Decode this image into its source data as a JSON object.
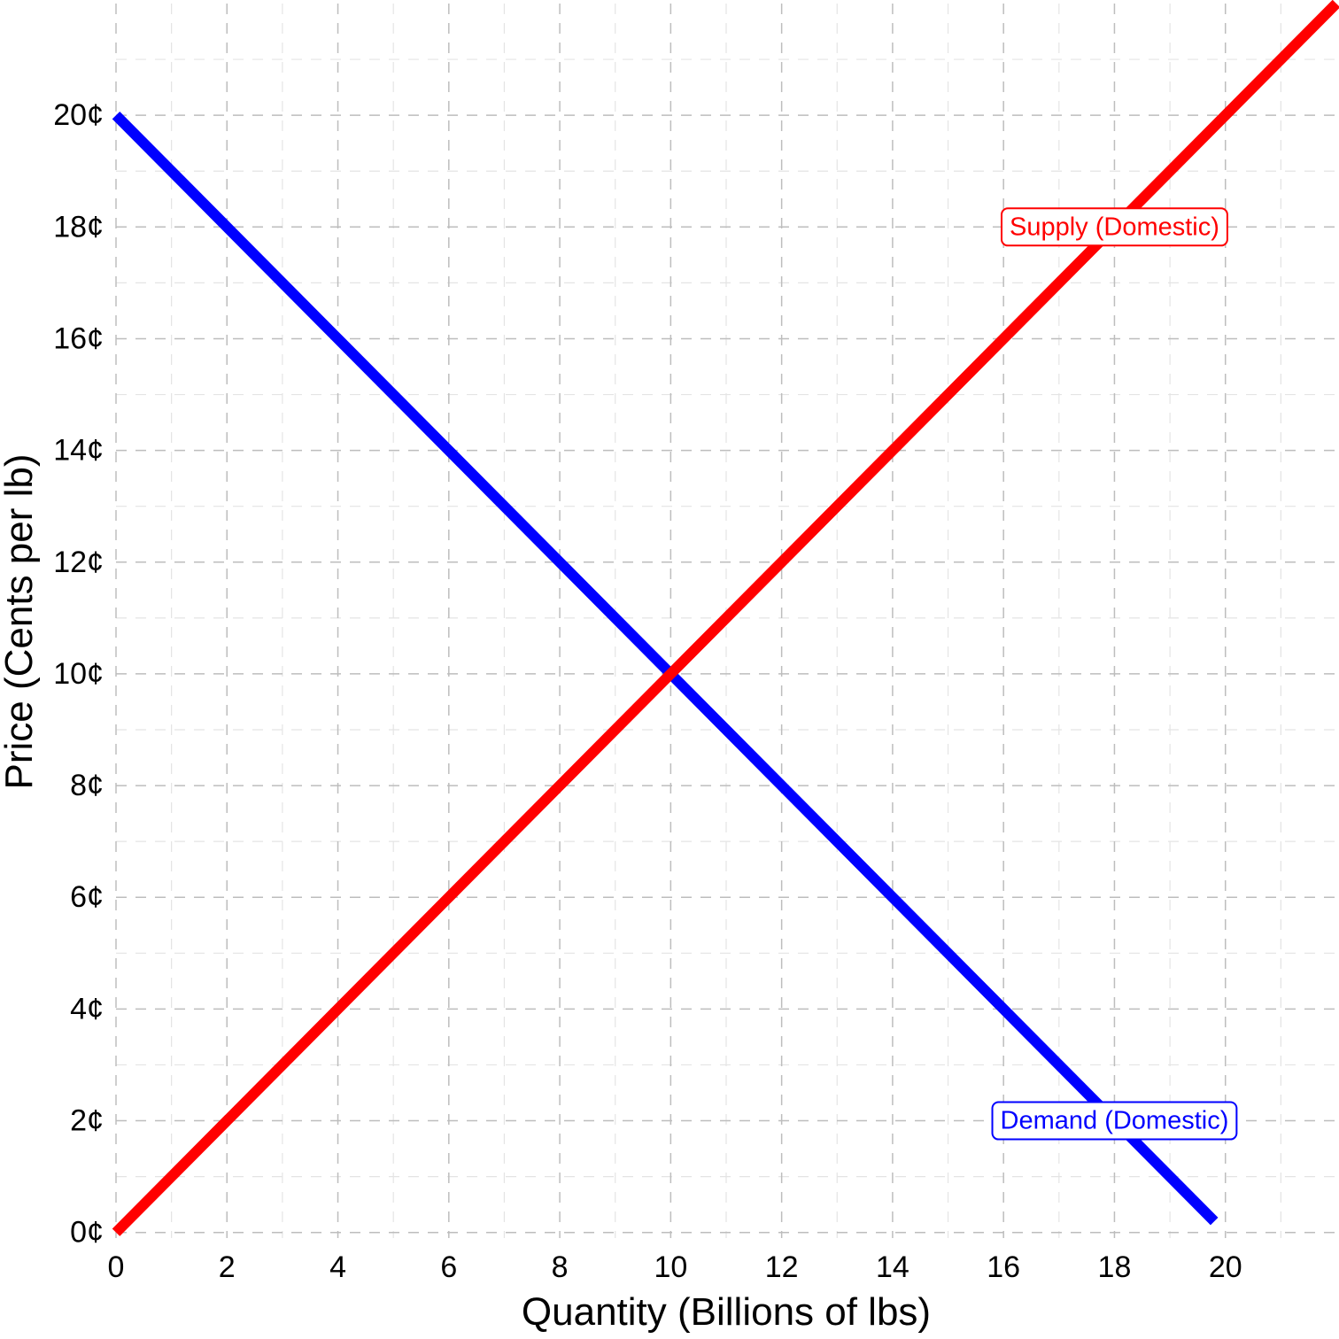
{
  "chart_data": {
    "type": "line",
    "xlabel": "Quantity (Billions of lbs)",
    "ylabel": "Price (Cents per lb)",
    "xlim": [
      0,
      22
    ],
    "ylim": [
      -0.1,
      22
    ],
    "x_ticks": [
      {
        "value": 0,
        "label": "0"
      },
      {
        "value": 2,
        "label": "2"
      },
      {
        "value": 4,
        "label": "4"
      },
      {
        "value": 6,
        "label": "6"
      },
      {
        "value": 8,
        "label": "8"
      },
      {
        "value": 10,
        "label": "10"
      },
      {
        "value": 12,
        "label": "12"
      },
      {
        "value": 14,
        "label": "14"
      },
      {
        "value": 16,
        "label": "16"
      },
      {
        "value": 18,
        "label": "18"
      },
      {
        "value": 20,
        "label": "20"
      }
    ],
    "y_ticks": [
      {
        "value": 0,
        "label": "0¢"
      },
      {
        "value": 2,
        "label": "2¢"
      },
      {
        "value": 4,
        "label": "4¢"
      },
      {
        "value": 6,
        "label": "6¢"
      },
      {
        "value": 8,
        "label": "8¢"
      },
      {
        "value": 10,
        "label": "10¢"
      },
      {
        "value": 12,
        "label": "12¢"
      },
      {
        "value": 14,
        "label": "14¢"
      },
      {
        "value": 16,
        "label": "16¢"
      },
      {
        "value": 18,
        "label": "18¢"
      },
      {
        "value": 20,
        "label": "20¢"
      }
    ],
    "grid": true,
    "grid_style": "dashed",
    "series": [
      {
        "id": "demand",
        "name": "Demand (Domestic)",
        "color": "#0000ff",
        "x": [
          0,
          19.8
        ],
        "y": [
          20,
          0.2
        ],
        "label_at": {
          "x": 18,
          "y": 2
        }
      },
      {
        "id": "supply",
        "name": "Supply (Domestic)",
        "color": "#ff0000",
        "x": [
          0,
          22
        ],
        "y": [
          0,
          22
        ],
        "label_at": {
          "x": 18,
          "y": 18
        }
      }
    ]
  }
}
